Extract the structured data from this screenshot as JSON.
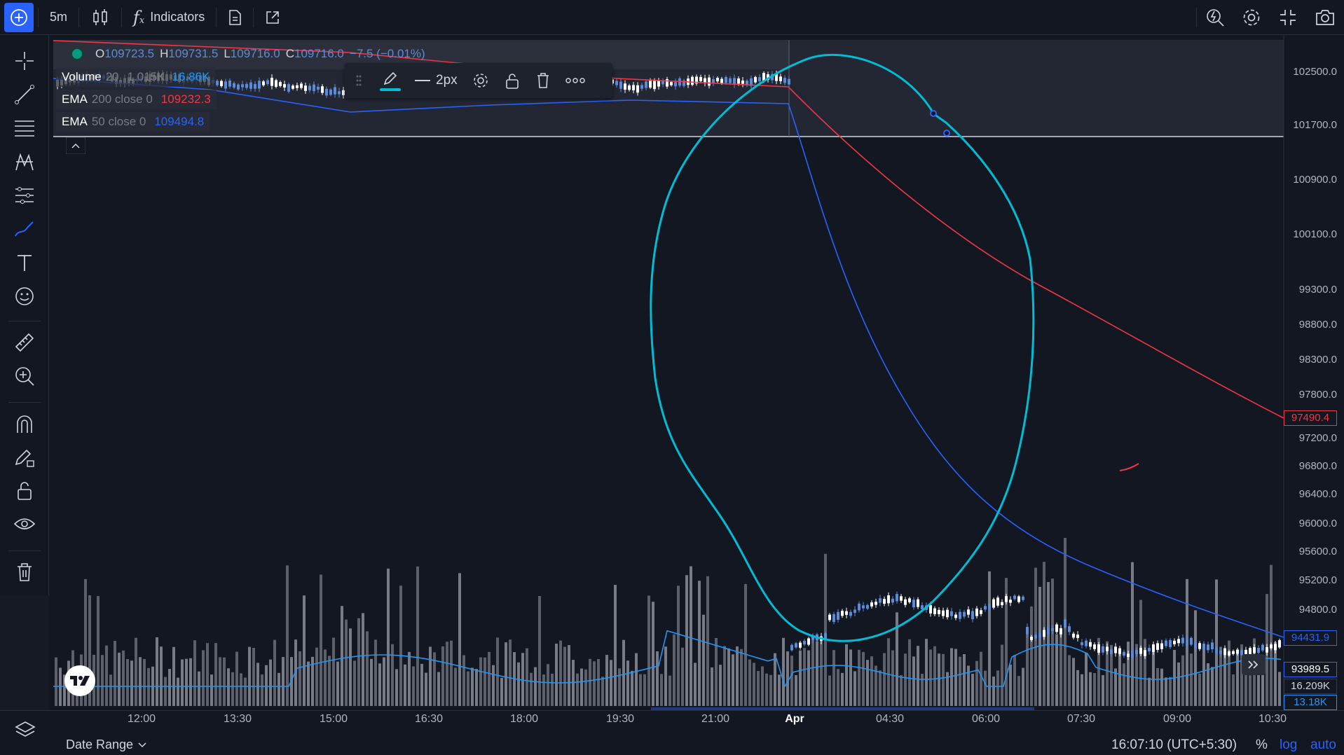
{
  "toolbar": {
    "interval": "5m",
    "indicators_label": "Indicators"
  },
  "legend": {
    "ohlc": {
      "o_label": "O",
      "o_value": "109723.5",
      "h_label": "H",
      "h_value": "109731.5",
      "l_label": "L",
      "l_value": "109716.0",
      "c_label": "C",
      "c_value": "109716.0",
      "change": "−7.5 (−0.01%)"
    },
    "volume": {
      "name": "Volume",
      "param": "20",
      "v1": "1.015K",
      "v2": "16.86K"
    },
    "ema200": {
      "name": "EMA",
      "params": "200 close 0",
      "value": "109232.3"
    },
    "ema50": {
      "name": "EMA",
      "params": "50 close 0",
      "value": "109494.8"
    }
  },
  "drawing_toolbar": {
    "width_label": "2px"
  },
  "bottom": {
    "date_range_label": "Date Range",
    "clock": "16:07:10 (UTC+5:30)",
    "percent": "%",
    "log": "log",
    "auto": "auto"
  },
  "colors": {
    "background": "#131722",
    "ema200": "#f23645",
    "ema50": "#2962ff",
    "up_candle": "#ffffff",
    "down_candle": "#5b8bd6",
    "volume_bar": "#6a6d78",
    "volume_ma": "#2196f3",
    "drawing": "#00bcd4"
  },
  "chart_data": {
    "type": "line",
    "symbol_interval": "5m",
    "price_axis_ticks": [
      "102500.0",
      "101700.0",
      "100900.0",
      "100100.0",
      "99300.0",
      "98800.0",
      "98300.0",
      "97800.0",
      "97200.0",
      "96800.0",
      "96400.0",
      "96000.0",
      "95600.0",
      "95200.0",
      "94800.0"
    ],
    "price_badges": {
      "ema200": "97490.4",
      "ema50": "94431.9",
      "last_price": "93989.5",
      "volume_ma": "16.209K",
      "volume": "13.18K"
    },
    "time_axis_ticks": [
      "12:00",
      "13:30",
      "15:00",
      "16:30",
      "18:00",
      "19:30",
      "21:00",
      "Apr",
      "04:30",
      "06:00",
      "07:30",
      "09:00",
      "10:30"
    ],
    "series": [
      {
        "name": "EMA 200 close 0",
        "values": [
          {
            "x": "12:00",
            "y": 109350
          },
          {
            "x": "19:30",
            "y": 109250
          },
          {
            "x": "21:00",
            "y": 109232
          },
          {
            "x": "Apr",
            "y": 102400
          },
          {
            "x": "04:30",
            "y": 101000
          },
          {
            "x": "07:30",
            "y": 99200
          },
          {
            "x": "10:30",
            "y": 97490.4
          }
        ]
      },
      {
        "name": "EMA 50 close 0",
        "values": [
          {
            "x": "12:00",
            "y": 109450
          },
          {
            "x": "16:30",
            "y": 109200
          },
          {
            "x": "21:00",
            "y": 109494.8
          },
          {
            "x": "Apr",
            "y": 101500
          },
          {
            "x": "04:30",
            "y": 97800
          },
          {
            "x": "07:30",
            "y": 95600
          },
          {
            "x": "10:30",
            "y": 94431.9
          }
        ]
      },
      {
        "name": "Price",
        "values": [
          {
            "x": "12:00",
            "y": 109500
          },
          {
            "x": "15:00",
            "y": 109000
          },
          {
            "x": "16:30",
            "y": 109200
          },
          {
            "x": "21:00",
            "y": 109716
          },
          {
            "x": "Apr",
            "y": 94500
          },
          {
            "x": "04:30",
            "y": 94700
          },
          {
            "x": "06:00",
            "y": 94900
          },
          {
            "x": "07:30",
            "y": 94400
          },
          {
            "x": "10:30",
            "y": 93989.5
          }
        ]
      }
    ]
  }
}
